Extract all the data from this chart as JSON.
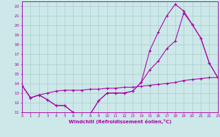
{
  "xlabel": "Windchill (Refroidissement éolien,°C)",
  "ylabel": "",
  "bg_color": "#cce8e8",
  "grid_color": "#aacccc",
  "line_color": "#aa00aa",
  "xlim": [
    0,
    23
  ],
  "ylim": [
    11,
    22.5
  ],
  "xticks": [
    0,
    1,
    2,
    3,
    4,
    5,
    6,
    7,
    8,
    9,
    10,
    11,
    12,
    13,
    14,
    15,
    16,
    17,
    18,
    19,
    20,
    21,
    22,
    23
  ],
  "yticks": [
    11,
    12,
    13,
    14,
    15,
    16,
    17,
    18,
    19,
    20,
    21,
    22
  ],
  "curve1_x": [
    0,
    1,
    2,
    3,
    4,
    5,
    6,
    7,
    8,
    9,
    10,
    11,
    12,
    13,
    14,
    15,
    16,
    17,
    18,
    19,
    20,
    21,
    22,
    23
  ],
  "curve1_y": [
    13.8,
    12.5,
    12.8,
    12.3,
    11.7,
    11.7,
    11.0,
    10.8,
    10.8,
    12.2,
    13.0,
    13.0,
    13.0,
    13.2,
    14.1,
    17.4,
    19.3,
    21.0,
    22.2,
    21.5,
    20.1,
    18.7,
    16.1,
    14.6
  ],
  "curve2_x": [
    0,
    1,
    2,
    3,
    4,
    5,
    6,
    7,
    8,
    9,
    10,
    11,
    12,
    13,
    14,
    15,
    16,
    17,
    18,
    19,
    20,
    21,
    22,
    23
  ],
  "curve2_y": [
    13.8,
    12.5,
    12.8,
    12.3,
    11.7,
    11.7,
    11.0,
    10.8,
    10.8,
    12.2,
    13.0,
    13.0,
    13.0,
    13.2,
    14.1,
    15.4,
    16.3,
    17.6,
    18.4,
    21.3,
    20.1,
    18.7,
    16.1,
    14.6
  ],
  "curve3_x": [
    0,
    1,
    2,
    3,
    4,
    5,
    6,
    7,
    8,
    9,
    10,
    11,
    12,
    13,
    14,
    15,
    16,
    17,
    18,
    19,
    20,
    21,
    22,
    23
  ],
  "curve3_y": [
    13.8,
    12.5,
    12.8,
    13.0,
    13.2,
    13.3,
    13.3,
    13.3,
    13.4,
    13.4,
    13.5,
    13.5,
    13.6,
    13.6,
    13.7,
    13.8,
    13.9,
    14.0,
    14.1,
    14.3,
    14.4,
    14.5,
    14.6,
    14.6
  ]
}
